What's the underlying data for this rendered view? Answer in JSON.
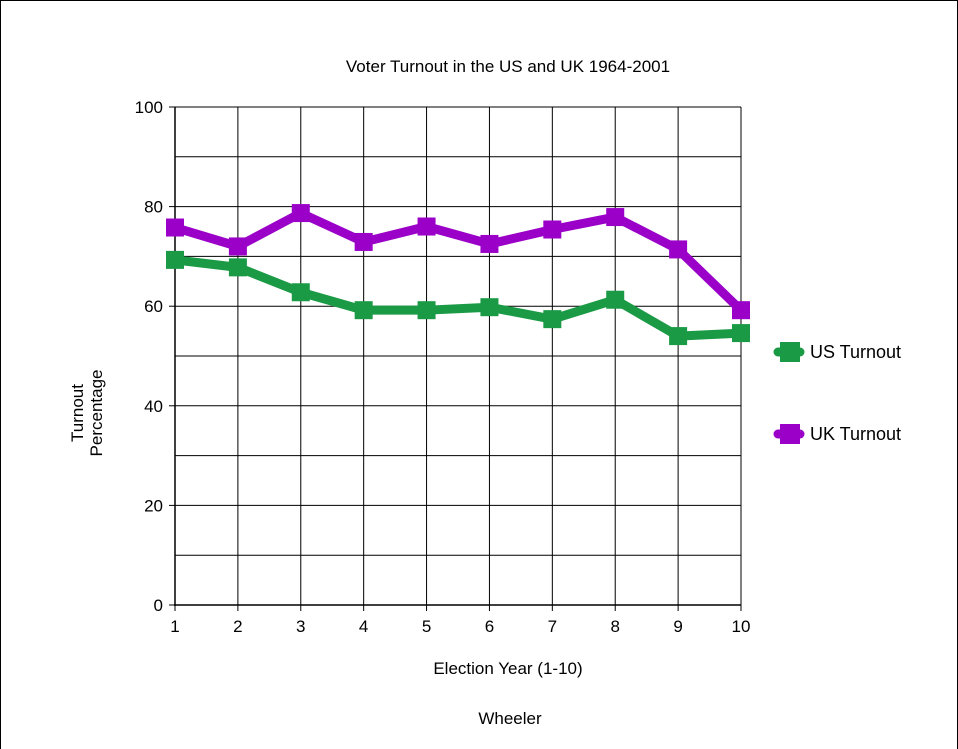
{
  "chart_data": {
    "type": "line",
    "title": "Voter Turnout in the US and UK 1964-2001",
    "xlabel": "Election Year (1-10)",
    "ylabel_lines": [
      "Turnout",
      "Percentage"
    ],
    "footer": "Wheeler",
    "x": [
      1,
      2,
      3,
      4,
      5,
      6,
      7,
      8,
      9,
      10
    ],
    "xlim": [
      1,
      10
    ],
    "ylim": [
      0,
      100
    ],
    "y_ticks": [
      0,
      20,
      40,
      60,
      80,
      100
    ],
    "grid": true,
    "legend_position": "right",
    "series": [
      {
        "name": "US Turnout",
        "color": "#1a9a45",
        "values": [
          69.3,
          67.8,
          62.8,
          59.2,
          59.2,
          59.8,
          57.4,
          61.3,
          54.0,
          54.6
        ]
      },
      {
        "name": "UK Turnout",
        "color": "#9a00c8",
        "values": [
          75.8,
          72.0,
          78.7,
          72.9,
          76.0,
          72.5,
          75.4,
          77.9,
          71.4,
          59.2
        ]
      }
    ]
  }
}
